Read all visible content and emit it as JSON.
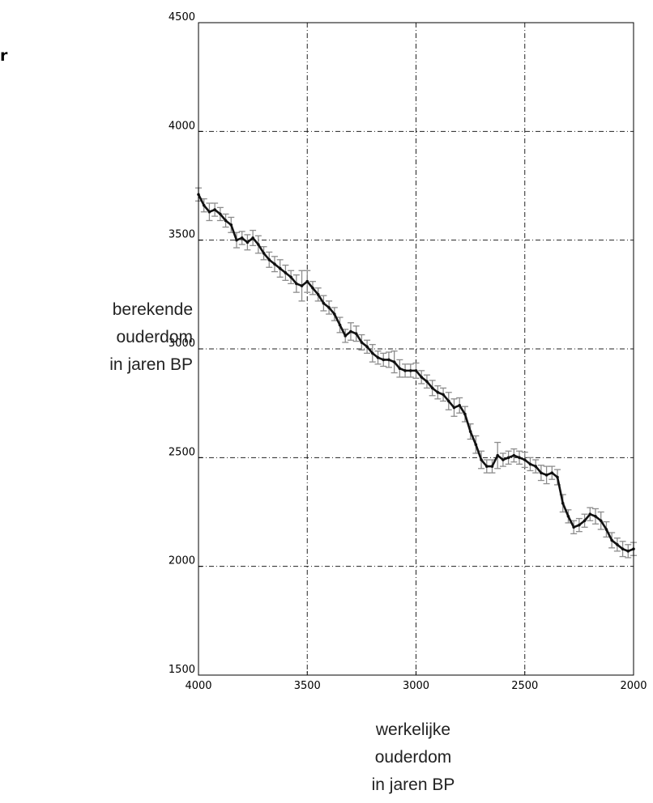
{
  "clipped_text": "r",
  "chart_data": {
    "type": "line",
    "title": "",
    "xlabel": [
      "werkelijke",
      "ouderdom",
      "in jaren BP"
    ],
    "ylabel": [
      "berekende",
      "ouderdom",
      "in jaren BP"
    ],
    "xlim": [
      4000,
      2000
    ],
    "ylim": [
      1500,
      4500
    ],
    "x_reversed": true,
    "xticks": [
      4000,
      3500,
      3000,
      2500,
      2000
    ],
    "yticks": [
      1500,
      2000,
      2500,
      3000,
      3500,
      4000,
      4500
    ],
    "xtick_labels": [
      "4000",
      "3500",
      "3000",
      "2500",
      "2000"
    ],
    "ytick_labels": [
      "1500",
      "2000",
      "2500",
      "3000",
      "3500",
      "4000",
      "4500"
    ],
    "grid": true,
    "grid_style": "dash-dot",
    "series_color": "#111111",
    "errorbar_color": "#8c8c8c",
    "x": [
      4000,
      3975,
      3950,
      3925,
      3900,
      3875,
      3850,
      3825,
      3800,
      3775,
      3750,
      3725,
      3700,
      3675,
      3650,
      3625,
      3600,
      3575,
      3550,
      3525,
      3500,
      3475,
      3450,
      3425,
      3400,
      3375,
      3350,
      3325,
      3300,
      3275,
      3250,
      3225,
      3200,
      3175,
      3150,
      3125,
      3100,
      3075,
      3050,
      3025,
      3000,
      2975,
      2950,
      2925,
      2900,
      2875,
      2850,
      2825,
      2800,
      2775,
      2750,
      2725,
      2700,
      2675,
      2650,
      2625,
      2600,
      2575,
      2550,
      2525,
      2500,
      2475,
      2450,
      2425,
      2400,
      2375,
      2350,
      2325,
      2300,
      2275,
      2250,
      2225,
      2200,
      2175,
      2150,
      2125,
      2100,
      2075,
      2050,
      2025,
      2000
    ],
    "y": [
      3710,
      3660,
      3630,
      3640,
      3620,
      3590,
      3570,
      3500,
      3510,
      3490,
      3510,
      3480,
      3440,
      3410,
      3390,
      3370,
      3350,
      3330,
      3300,
      3290,
      3310,
      3280,
      3250,
      3210,
      3190,
      3160,
      3110,
      3060,
      3080,
      3070,
      3030,
      3010,
      2980,
      2960,
      2950,
      2950,
      2940,
      2910,
      2900,
      2900,
      2900,
      2870,
      2850,
      2820,
      2800,
      2790,
      2760,
      2730,
      2740,
      2700,
      2620,
      2560,
      2490,
      2460,
      2460,
      2510,
      2490,
      2500,
      2510,
      2500,
      2490,
      2470,
      2460,
      2430,
      2420,
      2430,
      2410,
      2290,
      2230,
      2180,
      2190,
      2210,
      2240,
      2230,
      2210,
      2170,
      2120,
      2100,
      2080,
      2070,
      2080
    ],
    "errors": [
      30,
      30,
      40,
      30,
      30,
      30,
      35,
      35,
      30,
      35,
      35,
      40,
      30,
      35,
      35,
      40,
      35,
      30,
      40,
      70,
      50,
      30,
      30,
      35,
      30,
      30,
      35,
      30,
      40,
      35,
      35,
      30,
      40,
      30,
      30,
      35,
      50,
      40,
      30,
      30,
      35,
      30,
      30,
      35,
      30,
      30,
      40,
      40,
      35,
      35,
      35,
      40,
      40,
      30,
      30,
      60,
      30,
      30,
      30,
      30,
      35,
      30,
      30,
      35,
      40,
      30,
      35,
      40,
      30,
      30,
      30,
      30,
      30,
      35,
      40,
      35,
      35,
      30,
      35,
      30,
      30
    ]
  }
}
